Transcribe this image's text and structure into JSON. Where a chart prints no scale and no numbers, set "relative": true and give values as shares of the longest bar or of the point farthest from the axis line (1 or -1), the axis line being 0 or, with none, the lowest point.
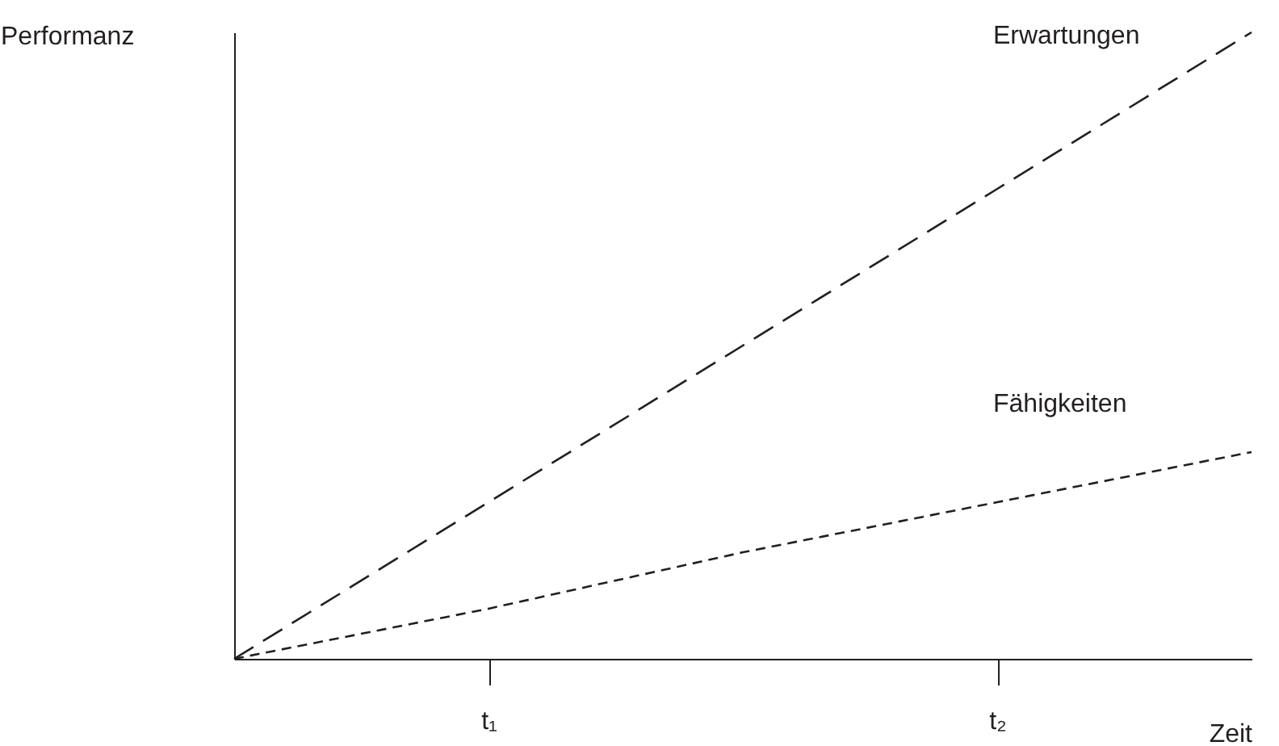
{
  "chart_data": {
    "type": "line",
    "relative": true,
    "xlabel": "Zeit",
    "ylabel": "Performanz",
    "categories": [
      null,
      "t₁",
      null,
      "t₂",
      null
    ],
    "series": [
      {
        "name": "Erwartungen",
        "color": "#231f20",
        "values": [
          0,
          0.25,
          0.5,
          0.75,
          1
        ]
      },
      {
        "name": "Fähigkeiten",
        "color": "#231f20",
        "values": [
          0,
          0.08,
          0.17,
          0.25,
          0.33
        ]
      }
    ],
    "line_style": "dashed"
  }
}
